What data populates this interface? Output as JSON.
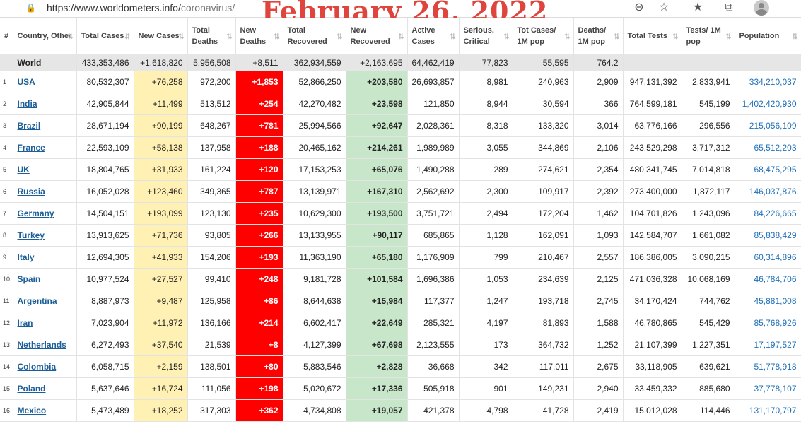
{
  "browser": {
    "url_host": "https://www.worldometers.info/",
    "url_path": "coronavirus/",
    "banner": "February 26, 2022"
  },
  "table": {
    "headers": [
      {
        "key": "idx",
        "label": "#"
      },
      {
        "key": "country",
        "label": "Country, Other"
      },
      {
        "key": "total_cases",
        "label": "Total Cases"
      },
      {
        "key": "new_cases",
        "label": "New Cases"
      },
      {
        "key": "total_deaths",
        "label": "Total Deaths"
      },
      {
        "key": "new_deaths",
        "label": "New Deaths"
      },
      {
        "key": "total_recovered",
        "label": "Total Recovered"
      },
      {
        "key": "new_recovered",
        "label": "New Recovered"
      },
      {
        "key": "active",
        "label": "Active Cases"
      },
      {
        "key": "serious",
        "label": "Serious, Critical"
      },
      {
        "key": "tot_per_m",
        "label": "Tot Cases/ 1M pop"
      },
      {
        "key": "deaths_per_m",
        "label": "Deaths/ 1M pop"
      },
      {
        "key": "total_tests",
        "label": "Total Tests"
      },
      {
        "key": "tests_per_m",
        "label": "Tests/ 1M pop"
      },
      {
        "key": "population",
        "label": "Population"
      }
    ],
    "world": [
      "",
      "World",
      "433,353,486",
      "+1,618,820",
      "5,956,508",
      "+8,511",
      "362,934,559",
      "+2,163,695",
      "64,462,419",
      "77,823",
      "55,595",
      "764.2",
      "",
      "",
      ""
    ],
    "rows": [
      [
        "1",
        "USA",
        "80,532,307",
        "+76,258",
        "972,200",
        "+1,853",
        "52,866,250",
        "+203,580",
        "26,693,857",
        "8,981",
        "240,963",
        "2,909",
        "947,131,392",
        "2,833,941",
        "334,210,037"
      ],
      [
        "2",
        "India",
        "42,905,844",
        "+11,499",
        "513,512",
        "+254",
        "42,270,482",
        "+23,598",
        "121,850",
        "8,944",
        "30,594",
        "366",
        "764,599,181",
        "545,199",
        "1,402,420,930"
      ],
      [
        "3",
        "Brazil",
        "28,671,194",
        "+90,199",
        "648,267",
        "+781",
        "25,994,566",
        "+92,647",
        "2,028,361",
        "8,318",
        "133,320",
        "3,014",
        "63,776,166",
        "296,556",
        "215,056,109"
      ],
      [
        "4",
        "France",
        "22,593,109",
        "+58,138",
        "137,958",
        "+188",
        "20,465,162",
        "+214,261",
        "1,989,989",
        "3,055",
        "344,869",
        "2,106",
        "243,529,298",
        "3,717,312",
        "65,512,203"
      ],
      [
        "5",
        "UK",
        "18,804,765",
        "+31,933",
        "161,224",
        "+120",
        "17,153,253",
        "+65,076",
        "1,490,288",
        "289",
        "274,621",
        "2,354",
        "480,341,745",
        "7,014,818",
        "68,475,295"
      ],
      [
        "6",
        "Russia",
        "16,052,028",
        "+123,460",
        "349,365",
        "+787",
        "13,139,971",
        "+167,310",
        "2,562,692",
        "2,300",
        "109,917",
        "2,392",
        "273,400,000",
        "1,872,117",
        "146,037,876"
      ],
      [
        "7",
        "Germany",
        "14,504,151",
        "+193,099",
        "123,130",
        "+235",
        "10,629,300",
        "+193,500",
        "3,751,721",
        "2,494",
        "172,204",
        "1,462",
        "104,701,826",
        "1,243,096",
        "84,226,665"
      ],
      [
        "8",
        "Turkey",
        "13,913,625",
        "+71,736",
        "93,805",
        "+266",
        "13,133,955",
        "+90,117",
        "685,865",
        "1,128",
        "162,091",
        "1,093",
        "142,584,707",
        "1,661,082",
        "85,838,429"
      ],
      [
        "9",
        "Italy",
        "12,694,305",
        "+41,933",
        "154,206",
        "+193",
        "11,363,190",
        "+65,180",
        "1,176,909",
        "799",
        "210,467",
        "2,557",
        "186,386,005",
        "3,090,215",
        "60,314,896"
      ],
      [
        "10",
        "Spain",
        "10,977,524",
        "+27,527",
        "99,410",
        "+248",
        "9,181,728",
        "+101,584",
        "1,696,386",
        "1,053",
        "234,639",
        "2,125",
        "471,036,328",
        "10,068,169",
        "46,784,706"
      ],
      [
        "11",
        "Argentina",
        "8,887,973",
        "+9,487",
        "125,958",
        "+86",
        "8,644,638",
        "+15,984",
        "117,377",
        "1,247",
        "193,718",
        "2,745",
        "34,170,424",
        "744,762",
        "45,881,008"
      ],
      [
        "12",
        "Iran",
        "7,023,904",
        "+11,972",
        "136,166",
        "+214",
        "6,602,417",
        "+22,649",
        "285,321",
        "4,197",
        "81,893",
        "1,588",
        "46,780,865",
        "545,429",
        "85,768,926"
      ],
      [
        "13",
        "Netherlands",
        "6,272,493",
        "+37,540",
        "21,539",
        "+8",
        "4,127,399",
        "+67,698",
        "2,123,555",
        "173",
        "364,732",
        "1,252",
        "21,107,399",
        "1,227,351",
        "17,197,527"
      ],
      [
        "14",
        "Colombia",
        "6,058,715",
        "+2,159",
        "138,501",
        "+80",
        "5,883,546",
        "+2,828",
        "36,668",
        "342",
        "117,011",
        "2,675",
        "33,118,905",
        "639,621",
        "51,778,918"
      ],
      [
        "15",
        "Poland",
        "5,637,646",
        "+16,724",
        "111,056",
        "+198",
        "5,020,672",
        "+17,336",
        "505,918",
        "901",
        "149,231",
        "2,940",
        "33,459,332",
        "885,680",
        "37,778,107"
      ],
      [
        "16",
        "Mexico",
        "5,473,489",
        "+18,252",
        "317,303",
        "+362",
        "4,734,808",
        "+19,057",
        "421,378",
        "4,798",
        "41,728",
        "2,419",
        "15,012,028",
        "114,446",
        "131,170,797"
      ]
    ]
  },
  "icons": [
    "zoom-out-icon",
    "add-favorite-icon",
    "favorites-icon",
    "collections-icon",
    "profile-avatar"
  ]
}
